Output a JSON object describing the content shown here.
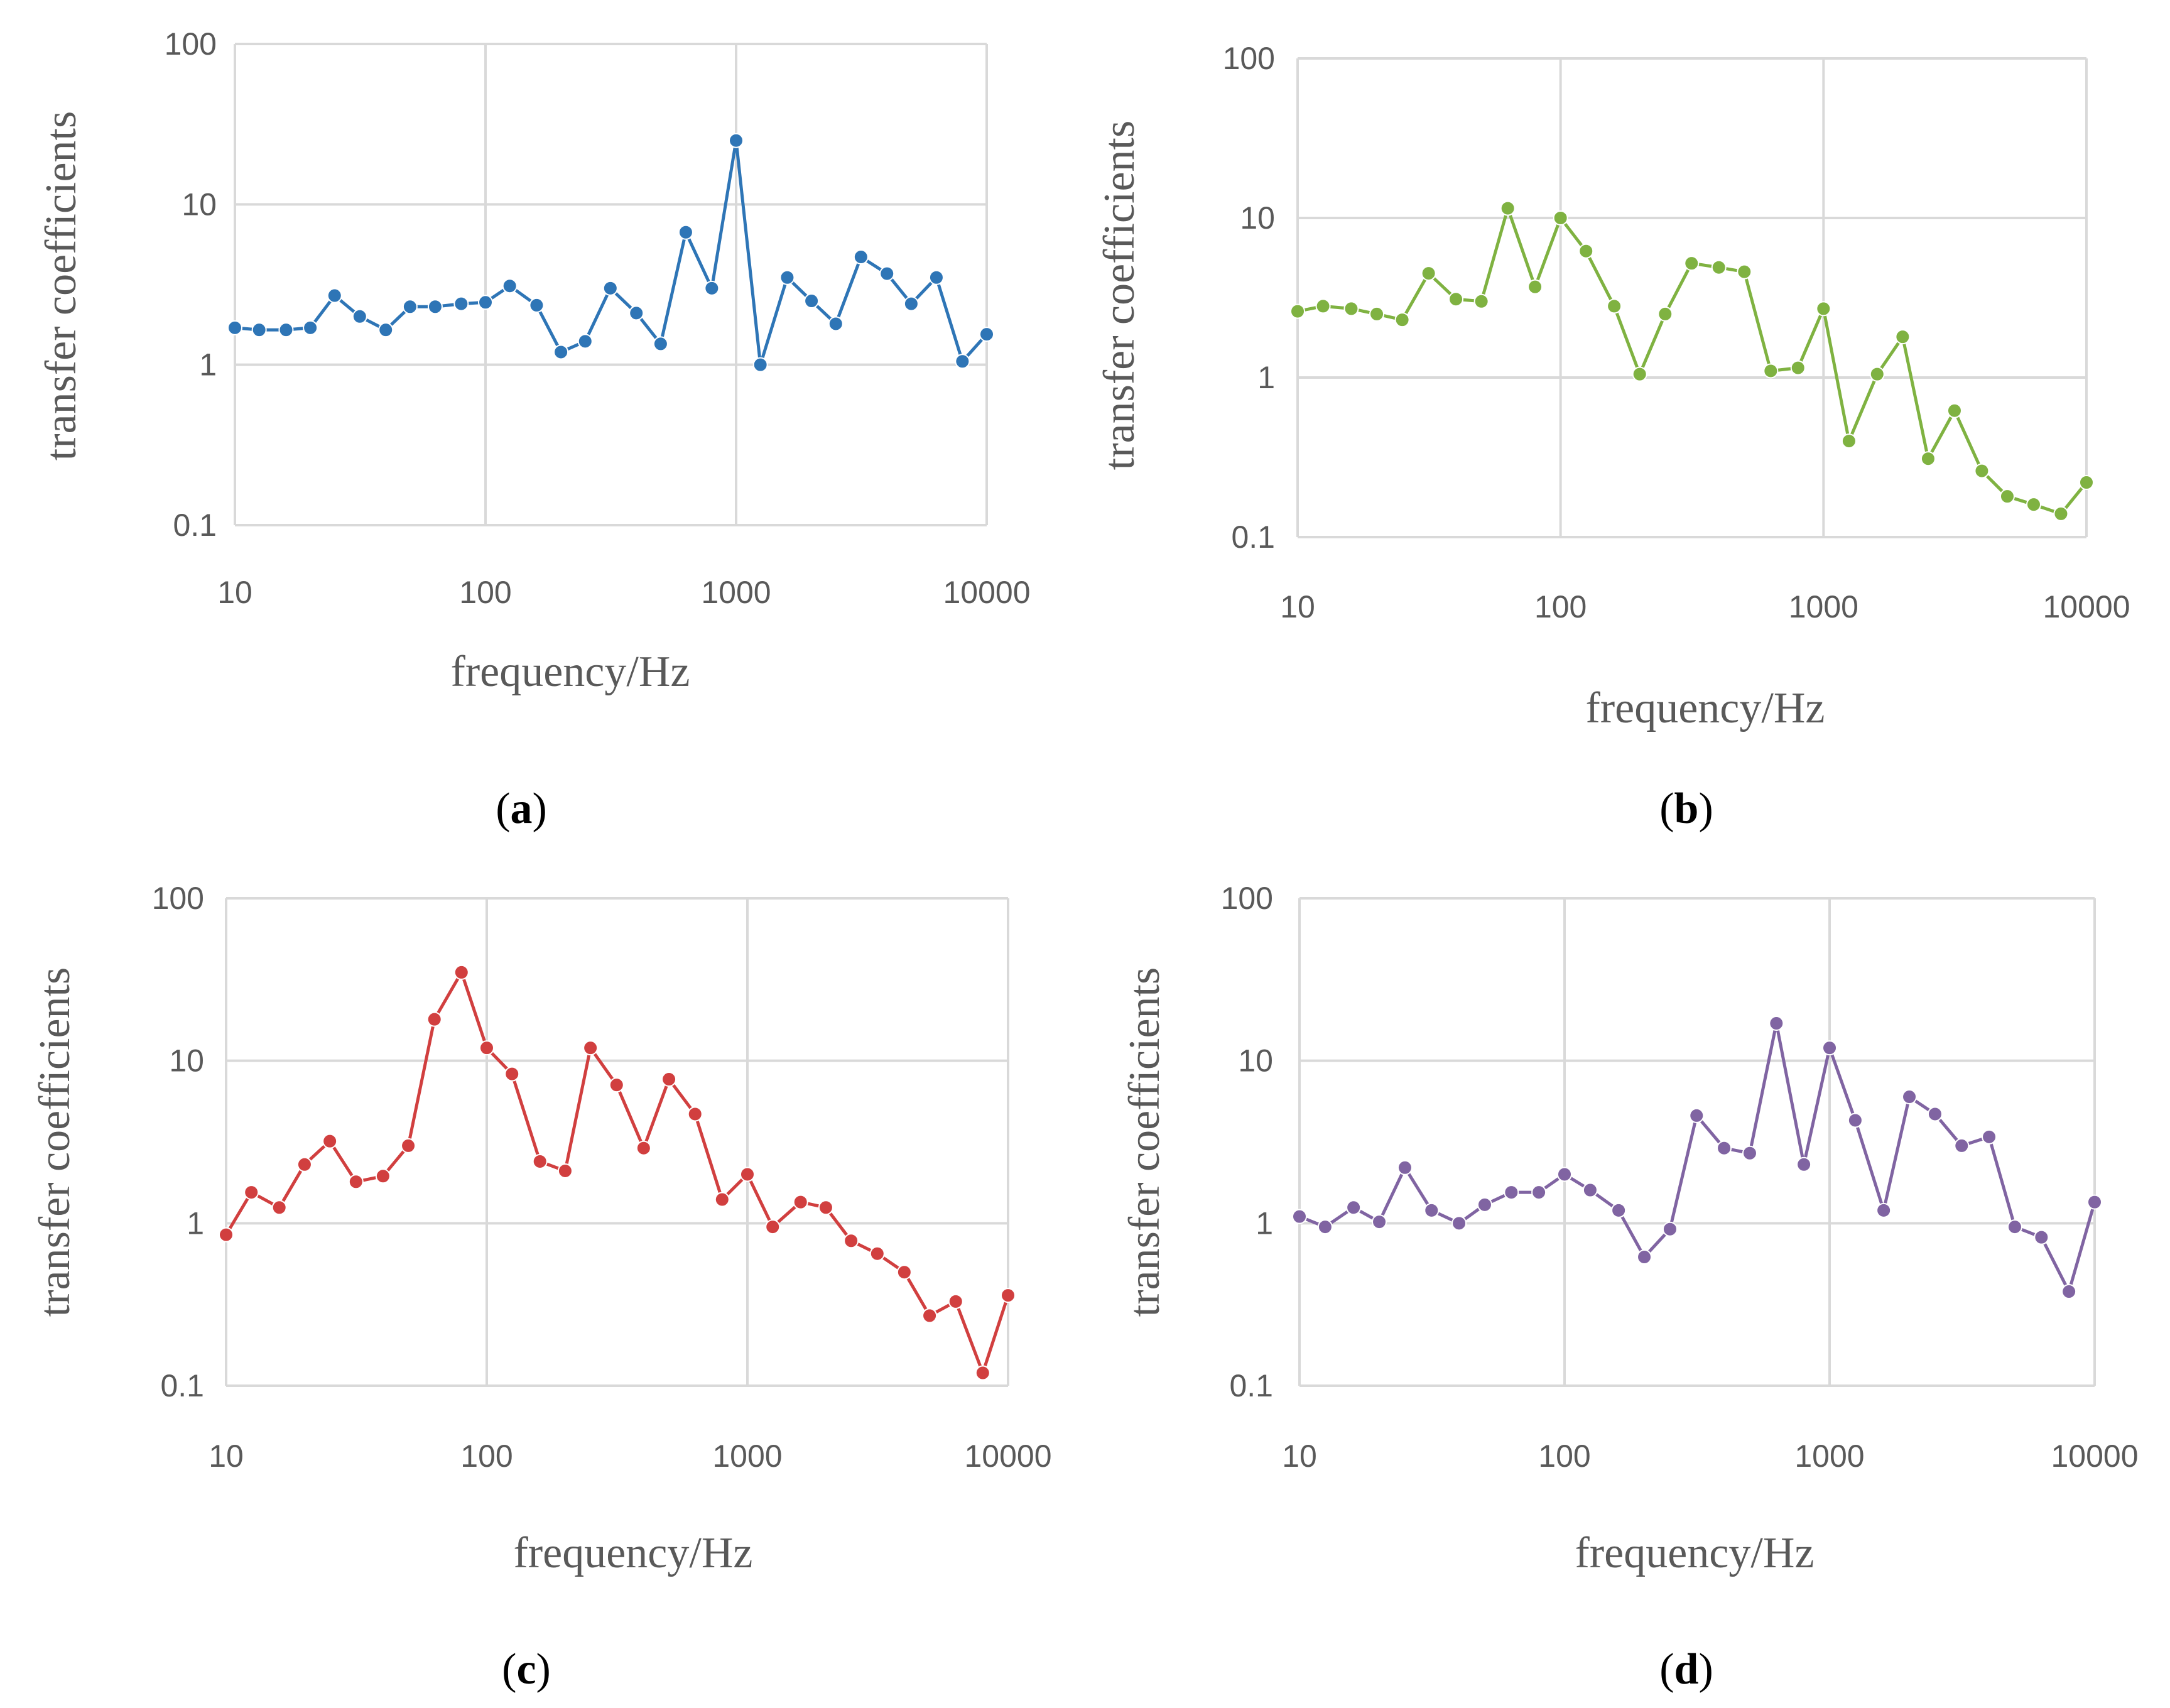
{
  "chart_data": [
    {
      "type": "line",
      "panel_label": "a",
      "color": "#2e75b6",
      "xscale": "log",
      "yscale": "log",
      "xlim": [
        10,
        10000
      ],
      "ylim": [
        0.1,
        100
      ],
      "xlabel": "frequency/Hz",
      "ylabel": "transfer coefficients",
      "xticks": [
        "10",
        "100",
        "1000",
        "10000"
      ],
      "yticks": [
        "0.1",
        "1",
        "10",
        "100"
      ],
      "grid": true,
      "x": [
        10,
        12.5,
        16,
        20,
        25,
        31.5,
        40,
        50,
        63,
        80,
        100,
        125,
        160,
        200,
        250,
        315,
        400,
        500,
        630,
        800,
        1000,
        1250,
        1600,
        2000,
        2500,
        3150,
        4000,
        5000,
        6300,
        8000,
        10000
      ],
      "y": [
        1.7,
        1.65,
        1.65,
        1.7,
        2.7,
        2.0,
        1.65,
        2.3,
        2.3,
        2.4,
        2.45,
        3.1,
        2.35,
        1.2,
        1.4,
        3.0,
        2.1,
        1.35,
        6.7,
        3.0,
        25,
        1.0,
        3.5,
        2.5,
        1.8,
        4.7,
        3.7,
        2.4,
        3.5,
        1.05,
        1.55
      ]
    },
    {
      "type": "line",
      "panel_label": "b",
      "color": "#7fb241",
      "xscale": "log",
      "yscale": "log",
      "xlim": [
        10,
        10000
      ],
      "ylim": [
        0.1,
        100
      ],
      "xlabel": "frequency/Hz",
      "ylabel": "transfer coefficients",
      "xticks": [
        "10",
        "100",
        "1000",
        "10000"
      ],
      "yticks": [
        "0.1",
        "1",
        "10",
        "100"
      ],
      "grid": true,
      "x": [
        10,
        12.5,
        16,
        20,
        25,
        31.5,
        40,
        50,
        63,
        80,
        100,
        125,
        160,
        200,
        250,
        315,
        400,
        500,
        630,
        800,
        1000,
        1250,
        1600,
        2000,
        2500,
        3150,
        4000,
        5000,
        6300,
        8000,
        10000
      ],
      "y": [
        2.6,
        2.8,
        2.7,
        2.5,
        2.3,
        4.5,
        3.1,
        3.0,
        11.5,
        3.7,
        10,
        6.2,
        2.8,
        1.05,
        2.5,
        5.2,
        4.9,
        4.6,
        1.1,
        1.15,
        2.7,
        0.4,
        1.05,
        1.8,
        0.31,
        0.62,
        0.26,
        0.18,
        0.16,
        0.14,
        0.22
      ]
    },
    {
      "type": "line",
      "panel_label": "c",
      "color": "#d13f3f",
      "xscale": "log",
      "yscale": "log",
      "xlim": [
        10,
        10000
      ],
      "ylim": [
        0.1,
        100
      ],
      "xlabel": "frequency/Hz",
      "ylabel": "transfer coefficients",
      "xticks": [
        "10",
        "100",
        "1000",
        "10000"
      ],
      "yticks": [
        "0.1",
        "1",
        "10",
        "100"
      ],
      "grid": true,
      "x": [
        10,
        12.5,
        16,
        20,
        25,
        31.5,
        40,
        50,
        63,
        80,
        100,
        125,
        160,
        200,
        250,
        315,
        400,
        500,
        630,
        800,
        1000,
        1250,
        1600,
        2000,
        2500,
        3150,
        4000,
        5000,
        6300,
        8000,
        10000
      ],
      "y": [
        0.85,
        1.55,
        1.25,
        2.3,
        3.2,
        1.8,
        1.95,
        3.0,
        18,
        35,
        12,
        8.3,
        2.4,
        2.1,
        12,
        7.1,
        2.9,
        7.7,
        4.7,
        1.4,
        2.0,
        0.95,
        1.35,
        1.25,
        0.78,
        0.65,
        0.5,
        0.27,
        0.33,
        0.12,
        0.36
      ]
    },
    {
      "type": "line",
      "panel_label": "d",
      "color": "#8064a2",
      "xscale": "log",
      "yscale": "log",
      "xlim": [
        10,
        10000
      ],
      "ylim": [
        0.1,
        100
      ],
      "xlabel": "frequency/Hz",
      "ylabel": "transfer coefficients",
      "xticks": [
        "10",
        "100",
        "1000",
        "10000"
      ],
      "yticks": [
        "0.1",
        "1",
        "10",
        "100"
      ],
      "grid": true,
      "x": [
        10,
        12.5,
        16,
        20,
        25,
        31.5,
        40,
        50,
        63,
        80,
        100,
        125,
        160,
        200,
        250,
        315,
        400,
        500,
        630,
        800,
        1000,
        1250,
        1600,
        2000,
        2500,
        3150,
        4000,
        5000,
        6300,
        8000,
        10000
      ],
      "y": [
        1.1,
        0.95,
        1.25,
        1.02,
        2.2,
        1.2,
        1.0,
        1.3,
        1.55,
        1.55,
        2.0,
        1.6,
        1.2,
        0.62,
        0.92,
        4.6,
        2.9,
        2.7,
        17,
        2.3,
        12,
        4.3,
        1.2,
        6.0,
        4.7,
        3.0,
        3.4,
        0.95,
        0.82,
        0.38,
        1.35
      ]
    }
  ]
}
